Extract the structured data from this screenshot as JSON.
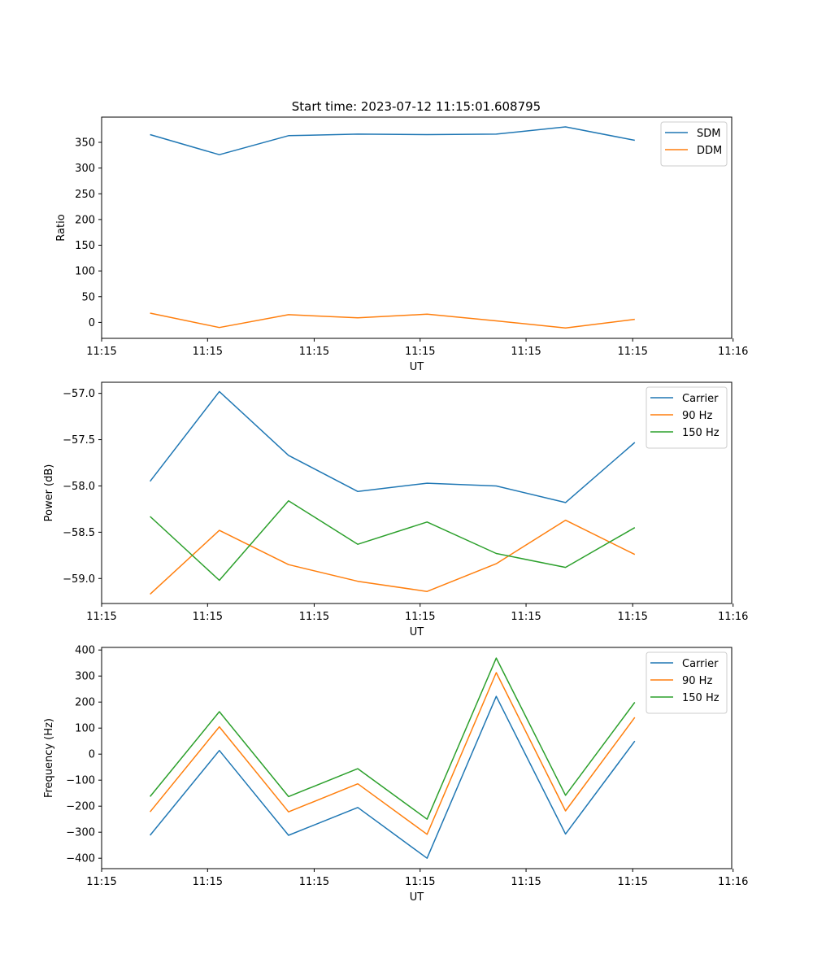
{
  "figure_title": "Start time: 2023-07-12 11:15:01.608795",
  "chart_data": [
    {
      "type": "line",
      "ylabel": "Ratio",
      "xlabel": "UT",
      "xticks": [
        "11:15",
        "11:15",
        "11:15",
        "11:15",
        "11:15",
        "11:15",
        "11:16"
      ],
      "yticks": [
        "0",
        "50",
        "100",
        "150",
        "200",
        "250",
        "300",
        "350"
      ],
      "ylim": [
        -31,
        399
      ],
      "legend": "top-right",
      "x": [
        0,
        1,
        2,
        3,
        4,
        5,
        6,
        7
      ],
      "series": [
        {
          "name": "SDM",
          "color": "#1f77b4",
          "values": [
            365,
            326,
            363,
            366,
            365,
            366,
            380,
            354
          ]
        },
        {
          "name": "DDM",
          "color": "#ff7f0e",
          "values": [
            18,
            -10,
            15,
            9,
            16,
            3,
            -11,
            6
          ]
        }
      ]
    },
    {
      "type": "line",
      "ylabel": "Power (dB)",
      "xlabel": "UT",
      "xticks": [
        "11:15",
        "11:15",
        "11:15",
        "11:15",
        "11:15",
        "11:15",
        "11:16"
      ],
      "yticks": [
        "−57.0",
        "−57.5",
        "−58.0",
        "−58.5",
        "−59.0"
      ],
      "ylim": [
        -59.27,
        -56.88
      ],
      "legend": "top-right",
      "x": [
        0,
        1,
        2,
        3,
        4,
        5,
        6,
        7
      ],
      "series": [
        {
          "name": "Carrier",
          "color": "#1f77b4",
          "values": [
            -57.95,
            -56.98,
            -57.67,
            -58.06,
            -57.97,
            -58.0,
            -58.18,
            -57.53
          ]
        },
        {
          "name": "90 Hz",
          "color": "#ff7f0e",
          "values": [
            -59.17,
            -58.48,
            -58.85,
            -59.03,
            -59.14,
            -58.84,
            -58.37,
            -58.74
          ]
        },
        {
          "name": "150 Hz",
          "color": "#2ca02c",
          "values": [
            -58.33,
            -59.02,
            -58.16,
            -58.63,
            -58.39,
            -58.73,
            -58.88,
            -58.45
          ]
        }
      ]
    },
    {
      "type": "line",
      "ylabel": "Frequency (Hz)",
      "xlabel": "UT",
      "xticks": [
        "11:15",
        "11:15",
        "11:15",
        "11:15",
        "11:15",
        "11:15",
        "11:16"
      ],
      "yticks": [
        "400",
        "300",
        "200",
        "100",
        "0",
        "−100",
        "−200",
        "−300",
        "−400"
      ],
      "ylim": [
        -440,
        410
      ],
      "legend": "top-right",
      "x": [
        0,
        1,
        2,
        3,
        4,
        5,
        6,
        7
      ],
      "series": [
        {
          "name": "Carrier",
          "color": "#1f77b4",
          "values": [
            -312,
            14,
            -312,
            -205,
            -400,
            222,
            -307,
            50
          ]
        },
        {
          "name": "90 Hz",
          "color": "#ff7f0e",
          "values": [
            -222,
            105,
            -222,
            -114,
            -308,
            313,
            -218,
            141
          ]
        },
        {
          "name": "150 Hz",
          "color": "#2ca02c",
          "values": [
            -163,
            163,
            -163,
            -56,
            -250,
            369,
            -158,
            199
          ]
        }
      ]
    }
  ]
}
